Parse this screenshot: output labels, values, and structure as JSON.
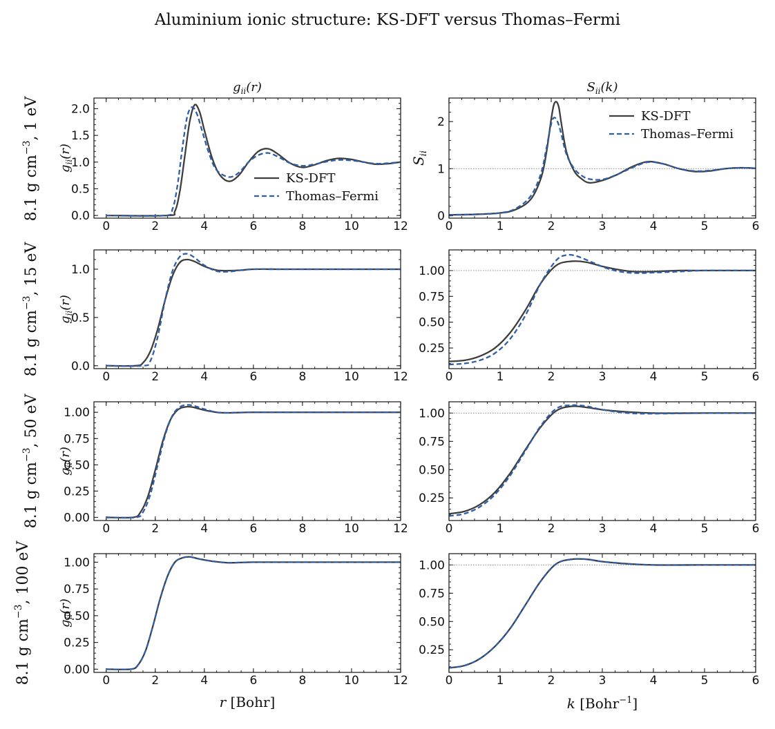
{
  "figure": {
    "title": "Aluminium ionic structure: KS-DFT versus Thomas–Fermi",
    "col_title_left_main": "g",
    "col_title_left_sub": "ii",
    "col_title_left_arg": "(r)",
    "col_title_right_main": "S",
    "col_title_right_sub": "ii",
    "col_title_right_arg": "(k)",
    "xlabel_left_var": "r",
    "xlabel_left_unit": " [Bohr]",
    "xlabel_right_var": "k",
    "xlabel_right_unit": " [Bohr",
    "xlabel_right_exp": "−1",
    "xlabel_right_close": "]",
    "row_labels": [
      {
        "pre": "8.1 g cm",
        "exp": "−3",
        "post": ", 1 eV"
      },
      {
        "pre": "8.1 g cm",
        "exp": "−3",
        "post": ", 15 eV"
      },
      {
        "pre": "8.1 g cm",
        "exp": "−3",
        "post": ", 50 eV"
      },
      {
        "pre": "8.1 g cm",
        "exp": "−3",
        "post": ", 100 eV"
      }
    ],
    "ylabel_g_main": "g",
    "ylabel_g_sub": "ii",
    "ylabel_g_arg": "(r)",
    "ylabel_s_main": "S",
    "ylabel_s_sub": "ii",
    "legend": {
      "ks": "KS-DFT",
      "tf": "Thomas–Fermi"
    },
    "colors": {
      "ks": "#3d3d3d",
      "tf": "#2f5ea8",
      "ref": "#8a8a8a"
    }
  },
  "chart_data": [
    {
      "type": "line",
      "panel": "g-1eV",
      "xlim": [
        -0.5,
        12
      ],
      "ylim": [
        -0.05,
        2.2
      ],
      "xticks": [
        0,
        2,
        4,
        6,
        8,
        10,
        12
      ],
      "yticks": [
        0.0,
        0.5,
        1.0,
        1.5,
        2.0
      ],
      "ytick_labels": [
        "0.0",
        "0.5",
        "1.0",
        "1.5",
        "2.0"
      ],
      "legend": true,
      "legend_position": "lower-right",
      "series": [
        {
          "name": "KS-DFT",
          "x": [
            0,
            2.5,
            2.8,
            3.0,
            3.2,
            3.4,
            3.6,
            3.8,
            4.0,
            4.3,
            4.6,
            5.0,
            5.4,
            5.8,
            6.2,
            6.6,
            7.0,
            7.5,
            8.0,
            8.5,
            9.0,
            9.5,
            10.0,
            10.5,
            11.0,
            11.5,
            12.0
          ],
          "y": [
            0,
            0,
            0.08,
            0.45,
            1.1,
            1.75,
            2.07,
            1.95,
            1.6,
            1.1,
            0.78,
            0.64,
            0.75,
            1.0,
            1.2,
            1.25,
            1.15,
            0.98,
            0.9,
            0.95,
            1.03,
            1.07,
            1.05,
            1.0,
            0.96,
            0.97,
            1.0
          ]
        },
        {
          "name": "Thomas–Fermi",
          "x": [
            0,
            2.4,
            2.7,
            2.9,
            3.1,
            3.3,
            3.5,
            3.7,
            3.9,
            4.2,
            4.5,
            5.0,
            5.4,
            5.8,
            6.2,
            6.6,
            7.0,
            7.5,
            8.0,
            8.5,
            9.0,
            9.5,
            10.0,
            10.5,
            11.0,
            11.5,
            12.0
          ],
          "y": [
            0,
            0,
            0.12,
            0.55,
            1.25,
            1.85,
            2.03,
            1.9,
            1.6,
            1.15,
            0.85,
            0.72,
            0.8,
            1.0,
            1.13,
            1.17,
            1.1,
            0.98,
            0.93,
            0.96,
            1.01,
            1.04,
            1.03,
            1.0,
            0.97,
            0.98,
            1.0
          ]
        }
      ]
    },
    {
      "type": "line",
      "panel": "S-1eV",
      "xlim": [
        0,
        6
      ],
      "ylim": [
        -0.05,
        2.5
      ],
      "xticks": [
        0,
        1,
        2,
        3,
        4,
        5,
        6
      ],
      "yticks": [
        0,
        1,
        2
      ],
      "ytick_labels": [
        "0",
        "1",
        "2"
      ],
      "reference_line": 1.0,
      "legend": true,
      "legend_position": "top-right",
      "series": [
        {
          "name": "KS-DFT",
          "x": [
            0,
            0.5,
            1.0,
            1.3,
            1.6,
            1.8,
            1.9,
            2.0,
            2.05,
            2.1,
            2.15,
            2.2,
            2.3,
            2.45,
            2.6,
            2.75,
            3.0,
            3.3,
            3.6,
            3.9,
            4.2,
            4.5,
            4.8,
            5.1,
            5.4,
            5.7,
            6.0
          ],
          "y": [
            0.02,
            0.03,
            0.06,
            0.13,
            0.35,
            0.8,
            1.3,
            2.05,
            2.35,
            2.42,
            2.3,
            1.95,
            1.35,
            0.95,
            0.78,
            0.7,
            0.75,
            0.88,
            1.05,
            1.15,
            1.1,
            1.0,
            0.94,
            0.95,
            1.0,
            1.02,
            1.01
          ]
        },
        {
          "name": "Thomas–Fermi",
          "x": [
            0,
            0.5,
            1.0,
            1.3,
            1.6,
            1.8,
            1.9,
            2.0,
            2.05,
            2.1,
            2.15,
            2.2,
            2.3,
            2.45,
            2.6,
            2.75,
            3.0,
            3.3,
            3.6,
            3.9,
            4.2,
            4.5,
            4.8,
            5.1,
            5.4,
            5.7,
            6.0
          ],
          "y": [
            0.02,
            0.03,
            0.06,
            0.15,
            0.42,
            0.9,
            1.4,
            1.95,
            2.08,
            2.05,
            1.92,
            1.72,
            1.3,
            1.0,
            0.85,
            0.78,
            0.77,
            0.88,
            1.03,
            1.14,
            1.1,
            1.0,
            0.95,
            0.96,
            1.0,
            1.02,
            1.01
          ]
        }
      ]
    },
    {
      "type": "line",
      "panel": "g-15eV",
      "xlim": [
        -0.5,
        12
      ],
      "ylim": [
        -0.03,
        1.2
      ],
      "xticks": [
        0,
        2,
        4,
        6,
        8,
        10,
        12
      ],
      "yticks": [
        0.0,
        0.5,
        1.0
      ],
      "ytick_labels": [
        "0.0",
        "0.5",
        "1.0"
      ],
      "series": [
        {
          "name": "KS-DFT",
          "x": [
            0,
            1.2,
            1.5,
            1.8,
            2.1,
            2.4,
            2.7,
            3.0,
            3.3,
            3.6,
            4.0,
            4.5,
            5.0,
            5.5,
            6.0,
            7.0,
            8.0,
            10.0,
            12.0
          ],
          "y": [
            0,
            0,
            0.03,
            0.15,
            0.38,
            0.68,
            0.93,
            1.07,
            1.1,
            1.08,
            1.03,
            0.99,
            0.985,
            0.99,
            1.0,
            1.0,
            1.0,
            1.0,
            1.0
          ]
        },
        {
          "name": "Thomas–Fermi",
          "x": [
            0,
            1.5,
            1.8,
            2.1,
            2.4,
            2.7,
            3.0,
            3.3,
            3.6,
            4.0,
            4.5,
            5.0,
            5.5,
            6.0,
            7.0,
            8.0,
            10.0,
            12.0
          ],
          "y": [
            0,
            0,
            0.05,
            0.3,
            0.68,
            0.98,
            1.13,
            1.16,
            1.12,
            1.04,
            0.98,
            0.975,
            0.99,
            1.0,
            1.0,
            1.0,
            1.0,
            1.0
          ]
        }
      ]
    },
    {
      "type": "line",
      "panel": "S-15eV",
      "xlim": [
        0,
        6
      ],
      "ylim": [
        0.05,
        1.2
      ],
      "xticks": [
        0,
        1,
        2,
        3,
        4,
        5,
        6
      ],
      "yticks": [
        0.25,
        0.5,
        0.75,
        1.0
      ],
      "ytick_labels": [
        "0.25",
        "0.50",
        "0.75",
        "1.00"
      ],
      "reference_line": 1.0,
      "series": [
        {
          "name": "KS-DFT",
          "x": [
            0,
            0.3,
            0.6,
            0.9,
            1.2,
            1.5,
            1.8,
            2.1,
            2.4,
            2.7,
            3.0,
            3.3,
            3.6,
            4.0,
            4.5,
            5.0,
            6.0
          ],
          "y": [
            0.12,
            0.13,
            0.17,
            0.25,
            0.4,
            0.62,
            0.88,
            1.05,
            1.09,
            1.08,
            1.04,
            1.01,
            0.99,
            0.99,
            1.0,
            1.0,
            1.0
          ]
        },
        {
          "name": "Thomas–Fermi",
          "x": [
            0,
            0.3,
            0.6,
            0.9,
            1.2,
            1.5,
            1.8,
            2.1,
            2.3,
            2.5,
            2.8,
            3.1,
            3.4,
            3.7,
            4.0,
            4.5,
            5.0,
            6.0
          ],
          "y": [
            0.09,
            0.1,
            0.13,
            0.2,
            0.34,
            0.57,
            0.88,
            1.1,
            1.15,
            1.14,
            1.08,
            1.02,
            0.985,
            0.975,
            0.98,
            0.99,
            1.0,
            1.0
          ]
        }
      ]
    },
    {
      "type": "line",
      "panel": "g-50eV",
      "xlim": [
        -0.5,
        12
      ],
      "ylim": [
        -0.03,
        1.1
      ],
      "xticks": [
        0,
        2,
        4,
        6,
        8,
        10,
        12
      ],
      "yticks": [
        0.0,
        0.25,
        0.5,
        0.75,
        1.0
      ],
      "ytick_labels": [
        "0.00",
        "0.25",
        "0.50",
        "0.75",
        "1.00"
      ],
      "series": [
        {
          "name": "KS-DFT",
          "x": [
            0,
            1.1,
            1.4,
            1.7,
            2.0,
            2.3,
            2.6,
            2.9,
            3.2,
            3.5,
            4.0,
            4.5,
            5.0,
            6.0,
            8.0,
            12.0
          ],
          "y": [
            0,
            0,
            0.05,
            0.2,
            0.45,
            0.72,
            0.92,
            1.02,
            1.05,
            1.05,
            1.02,
            1.0,
            0.995,
            1.0,
            1.0,
            1.0
          ]
        },
        {
          "name": "Thomas–Fermi",
          "x": [
            0,
            1.2,
            1.5,
            1.8,
            2.1,
            2.4,
            2.7,
            3.0,
            3.3,
            3.6,
            4.0,
            4.5,
            5.0,
            6.0,
            8.0,
            12.0
          ],
          "y": [
            0,
            0,
            0.05,
            0.22,
            0.5,
            0.78,
            0.97,
            1.05,
            1.07,
            1.06,
            1.03,
            1.0,
            0.995,
            1.0,
            1.0,
            1.0
          ]
        }
      ]
    },
    {
      "type": "line",
      "panel": "S-50eV",
      "xlim": [
        0,
        6
      ],
      "ylim": [
        0.05,
        1.1
      ],
      "xticks": [
        0,
        1,
        2,
        3,
        4,
        5,
        6
      ],
      "yticks": [
        0.25,
        0.5,
        0.75,
        1.0
      ],
      "ytick_labels": [
        "0.25",
        "0.50",
        "0.75",
        "1.00"
      ],
      "reference_line": 1.0,
      "series": [
        {
          "name": "KS-DFT",
          "x": [
            0,
            0.3,
            0.6,
            0.9,
            1.2,
            1.5,
            1.8,
            2.1,
            2.4,
            2.7,
            3.0,
            3.5,
            4.0,
            5.0,
            6.0
          ],
          "y": [
            0.11,
            0.13,
            0.19,
            0.3,
            0.47,
            0.68,
            0.88,
            1.02,
            1.06,
            1.05,
            1.03,
            1.01,
            1.0,
            1.0,
            1.0
          ]
        },
        {
          "name": "Thomas–Fermi",
          "x": [
            0,
            0.3,
            0.6,
            0.9,
            1.2,
            1.5,
            1.8,
            2.1,
            2.4,
            2.7,
            3.0,
            3.5,
            4.0,
            5.0,
            6.0
          ],
          "y": [
            0.09,
            0.11,
            0.17,
            0.28,
            0.45,
            0.67,
            0.89,
            1.04,
            1.07,
            1.06,
            1.03,
            1.0,
            0.995,
            1.0,
            1.0
          ]
        }
      ]
    },
    {
      "type": "line",
      "panel": "g-100eV",
      "xlim": [
        -0.5,
        12
      ],
      "ylim": [
        -0.03,
        1.08
      ],
      "xticks": [
        0,
        2,
        4,
        6,
        8,
        10,
        12
      ],
      "yticks": [
        0.0,
        0.25,
        0.5,
        0.75,
        1.0
      ],
      "ytick_labels": [
        "0.00",
        "0.25",
        "0.50",
        "0.75",
        "1.00"
      ],
      "series": [
        {
          "name": "KS-DFT",
          "x": [
            0,
            1.0,
            1.3,
            1.6,
            1.9,
            2.2,
            2.5,
            2.8,
            3.1,
            3.4,
            3.8,
            4.3,
            5.0,
            6.0,
            8.0,
            12.0
          ],
          "y": [
            0,
            0,
            0.04,
            0.17,
            0.4,
            0.66,
            0.87,
            1.0,
            1.04,
            1.05,
            1.03,
            1.01,
            0.995,
            1.0,
            1.0,
            1.0
          ]
        },
        {
          "name": "Thomas–Fermi",
          "x": [
            0,
            1.0,
            1.3,
            1.6,
            1.9,
            2.2,
            2.5,
            2.8,
            3.1,
            3.4,
            3.8,
            4.3,
            5.0,
            6.0,
            8.0,
            12.0
          ],
          "y": [
            0,
            0,
            0.04,
            0.17,
            0.4,
            0.66,
            0.87,
            1.0,
            1.04,
            1.05,
            1.03,
            1.01,
            0.995,
            1.0,
            1.0,
            1.0
          ]
        }
      ]
    },
    {
      "type": "line",
      "panel": "S-100eV",
      "xlim": [
        0,
        6
      ],
      "ylim": [
        0.05,
        1.1
      ],
      "xticks": [
        0,
        1,
        2,
        3,
        4,
        5,
        6
      ],
      "yticks": [
        0.25,
        0.5,
        0.75,
        1.0
      ],
      "ytick_labels": [
        "0.25",
        "0.50",
        "0.75",
        "1.00"
      ],
      "reference_line": 1.0,
      "series": [
        {
          "name": "KS-DFT",
          "x": [
            0,
            0.3,
            0.6,
            0.9,
            1.2,
            1.5,
            1.8,
            2.1,
            2.4,
            2.7,
            3.0,
            3.5,
            4.0,
            5.0,
            6.0
          ],
          "y": [
            0.09,
            0.11,
            0.17,
            0.28,
            0.44,
            0.65,
            0.86,
            1.01,
            1.05,
            1.05,
            1.03,
            1.01,
            1.0,
            1.0,
            1.0
          ]
        },
        {
          "name": "Thomas–Fermi",
          "x": [
            0,
            0.3,
            0.6,
            0.9,
            1.2,
            1.5,
            1.8,
            2.1,
            2.4,
            2.7,
            3.0,
            3.5,
            4.0,
            5.0,
            6.0
          ],
          "y": [
            0.09,
            0.11,
            0.17,
            0.28,
            0.44,
            0.65,
            0.86,
            1.01,
            1.05,
            1.05,
            1.03,
            1.01,
            1.0,
            1.0,
            1.0
          ]
        }
      ]
    }
  ]
}
